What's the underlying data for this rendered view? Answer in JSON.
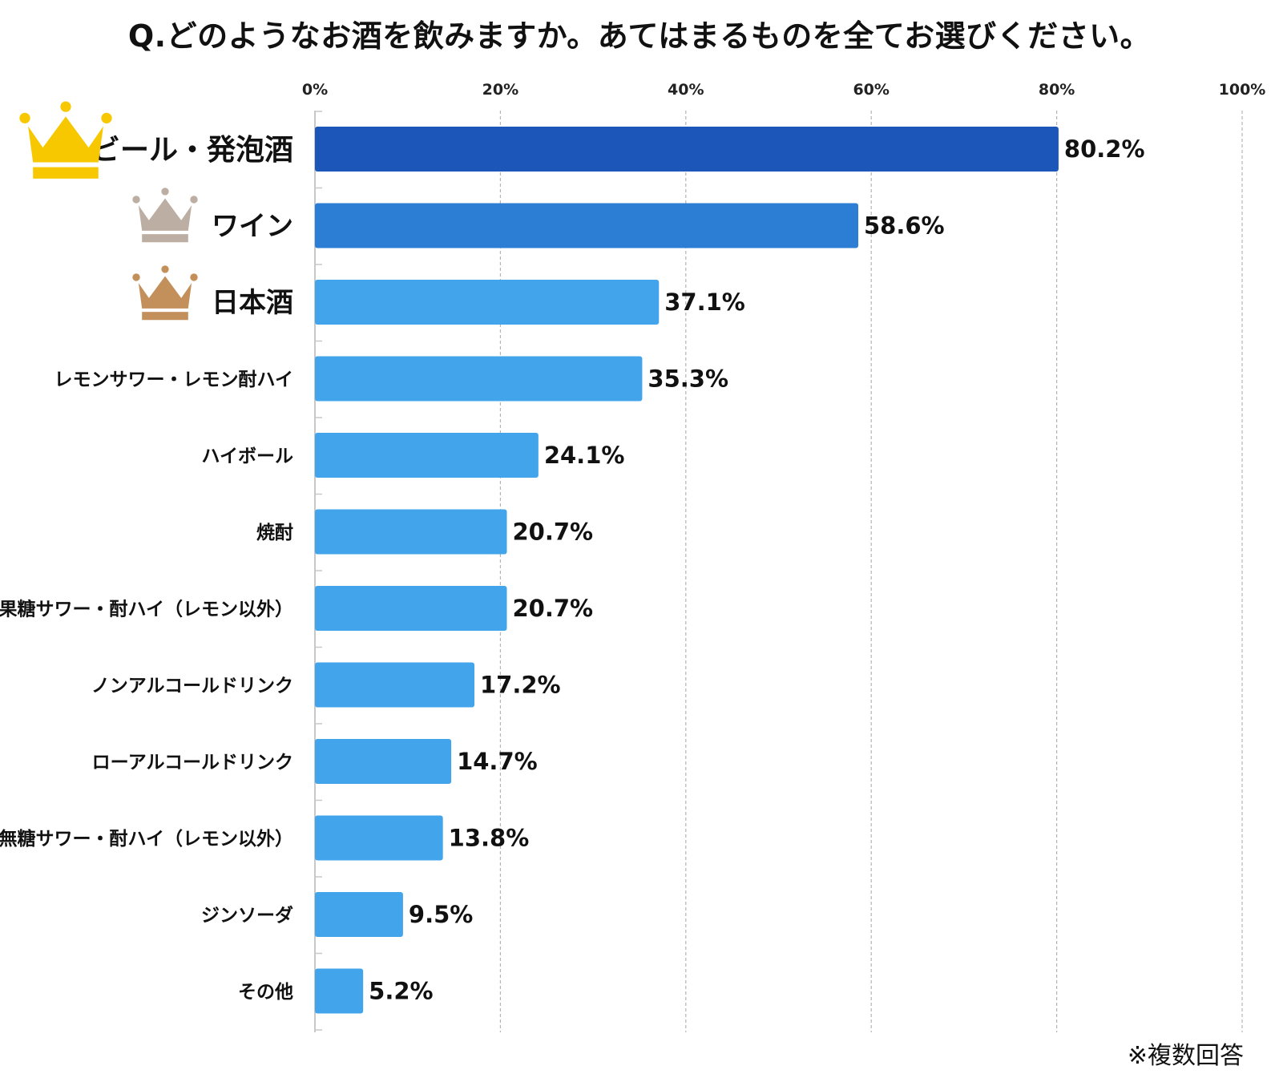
{
  "title": "Q.どのようなお酒を飲みますか。あてはまるものを全てお選びください。",
  "note": "※複数回答",
  "colors": {
    "rank1": "#1c56b9",
    "rank2": "#2b7ed3",
    "others": "#42a5ec",
    "gold": "#f7c800",
    "silver": "#bcaea2",
    "bronze": "#c38f5a",
    "grid": "#b4b4b4"
  },
  "chart_data": {
    "type": "bar",
    "orientation": "horizontal",
    "categories": [
      "ビール・発泡酒",
      "ワイン",
      "日本酒",
      "レモンサワー・レモン酎ハイ",
      "ハイボール",
      "焼酎",
      "果糖サワー・酎ハイ（レモン以外）",
      "ノンアルコールドリンク",
      "ローアルコールドリンク",
      "無糖サワー・酎ハイ（レモン以外）",
      "ジンソーダ",
      "その他"
    ],
    "values": [
      80.2,
      58.6,
      37.1,
      35.3,
      24.1,
      20.7,
      20.7,
      17.2,
      14.7,
      13.8,
      9.5,
      5.2
    ],
    "value_labels": [
      "80.2%",
      "58.6%",
      "37.1%",
      "35.3%",
      "24.1%",
      "20.7%",
      "20.7%",
      "17.2%",
      "14.7%",
      "13.8%",
      "9.5%",
      "5.2%"
    ],
    "xlim": [
      0,
      100
    ],
    "x_ticks": [
      "0%",
      "20%",
      "40%",
      "60%",
      "80%",
      "100%"
    ],
    "x_axis_position": "top",
    "grid": true,
    "ranking_icons": [
      "gold-crown",
      "silver-crown",
      "bronze-crown"
    ]
  }
}
